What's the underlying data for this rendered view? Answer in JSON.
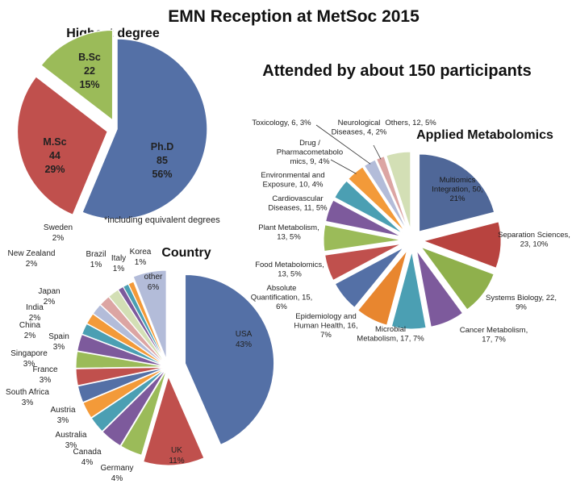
{
  "title": "EMN Reception at MetSoc 2015",
  "subtitle": "Attended by about 150 participants",
  "colors": {
    "blue": "#5470a6",
    "red": "#c0504d",
    "green": "#9bbb59",
    "purple": "#7d5a9c",
    "teal": "#4b9fb3",
    "orange": "#f39a39",
    "lavender": "#b3bcd9",
    "pink": "#dca5a3",
    "lightgreen": "#d3dfb5"
  },
  "chart_data": [
    {
      "type": "pie",
      "title": "Highest degree",
      "footnote": "*including equivalent degrees",
      "slices": [
        {
          "name": "Ph.D",
          "value": 85,
          "percent": "56%",
          "color": "#5470a6",
          "label": [
            "Ph.D",
            "85",
            "56%"
          ]
        },
        {
          "name": "M.Sc",
          "value": 44,
          "percent": "29%",
          "color": "#c0504d",
          "label": [
            "M.Sc",
            "44",
            "29%"
          ]
        },
        {
          "name": "B.Sc",
          "value": 22,
          "percent": "15%",
          "color": "#9bbb59",
          "label": [
            "B.Sc",
            "22",
            "15%"
          ]
        }
      ]
    },
    {
      "type": "pie",
      "title": "Country",
      "slices": [
        {
          "name": "USA",
          "value": 43,
          "color": "#5470a6",
          "label": [
            "USA",
            "43%"
          ]
        },
        {
          "name": "UK",
          "value": 11,
          "color": "#c0504d",
          "label": [
            "UK",
            "11%"
          ]
        },
        {
          "name": "Germany",
          "value": 4,
          "color": "#9bbb59",
          "label": [
            "Germany",
            "4%"
          ]
        },
        {
          "name": "Canada",
          "value": 4,
          "color": "#7d5a9c",
          "label": [
            "Canada",
            "4%"
          ]
        },
        {
          "name": "Australia",
          "value": 3,
          "color": "#4b9fb3",
          "label": [
            "Australia",
            "3%"
          ]
        },
        {
          "name": "Austria",
          "value": 3,
          "color": "#f39a39",
          "label": [
            "Austria",
            "3%"
          ]
        },
        {
          "name": "South Africa",
          "value": 3,
          "color": "#5470a6",
          "label": [
            "South Africa",
            "3%"
          ]
        },
        {
          "name": "France",
          "value": 3,
          "color": "#c0504d",
          "label": [
            "France",
            "3%"
          ]
        },
        {
          "name": "Singapore",
          "value": 3,
          "color": "#9bbb59",
          "label": [
            "Singapore",
            "3%"
          ]
        },
        {
          "name": "Spain",
          "value": 3,
          "color": "#7d5a9c",
          "label": [
            "Spain",
            "3%"
          ]
        },
        {
          "name": "China",
          "value": 2,
          "color": "#4b9fb3",
          "label": [
            "China",
            "2%"
          ]
        },
        {
          "name": "India",
          "value": 2,
          "color": "#f39a39",
          "label": [
            "India",
            "2%"
          ]
        },
        {
          "name": "Japan",
          "value": 2,
          "color": "#b3bcd9",
          "label": [
            "Japan",
            "2%"
          ]
        },
        {
          "name": "New Zealand",
          "value": 2,
          "color": "#dca5a3",
          "label": [
            "New Zealand",
            "2%"
          ]
        },
        {
          "name": "Sweden",
          "value": 2,
          "color": "#d3dfb5",
          "label": [
            "Sweden",
            "2%"
          ]
        },
        {
          "name": "Brazil",
          "value": 1,
          "color": "#7d5a9c",
          "label": [
            "Brazil",
            "1%"
          ]
        },
        {
          "name": "Italy",
          "value": 1,
          "color": "#4b9fb3",
          "label": [
            "Italy",
            "1%"
          ]
        },
        {
          "name": "Korea",
          "value": 1,
          "color": "#f39a39",
          "label": [
            "Korea",
            "1%"
          ]
        },
        {
          "name": "other",
          "value": 6,
          "color": "#b3bcd9",
          "label": [
            "other",
            "6%"
          ]
        }
      ]
    },
    {
      "type": "pie",
      "title": "Applied Metabolomics",
      "slices": [
        {
          "name": "Multiomics Integration",
          "value": 50,
          "percent": "21%",
          "color": "#4f6798",
          "label": [
            "Multiomics",
            "Integration, 50,",
            "21%"
          ]
        },
        {
          "name": "Separation Sciences",
          "value": 23,
          "percent": "10%",
          "color": "#b8433f",
          "label": [
            "Separation Sciences,",
            "23, 10%"
          ]
        },
        {
          "name": "Systems Biology",
          "value": 22,
          "percent": "9%",
          "color": "#8fb04c",
          "label": [
            "Systems Biology, 22,",
            "9%"
          ]
        },
        {
          "name": "Cancer Metabolism",
          "value": 17,
          "percent": "7%",
          "color": "#7d5a9c",
          "label": [
            "Cancer Metabolism,",
            "17, 7%"
          ]
        },
        {
          "name": "Microbial Metabolism",
          "value": 17,
          "percent": "7%",
          "color": "#4b9fb3",
          "label": [
            "Microbial",
            "Metabolism, 17, 7%"
          ]
        },
        {
          "name": "Epidemiology and Human Health",
          "value": 16,
          "percent": "7%",
          "color": "#e8862f",
          "label": [
            "Epidemiology and",
            "Human Health, 16,",
            "7%"
          ]
        },
        {
          "name": "Absolute Quantification",
          "value": 15,
          "percent": "6%",
          "color": "#5470a6",
          "label": [
            "Absolute",
            "Quantification, 15,",
            "6%"
          ]
        },
        {
          "name": "Food Metabolomics",
          "value": 13,
          "percent": "5%",
          "color": "#c0504d",
          "label": [
            "Food Metabolomics,",
            "13, 5%"
          ]
        },
        {
          "name": "Plant Metabolism",
          "value": 13,
          "percent": "5%",
          "color": "#9bbb59",
          "label": [
            "Plant Metabolism,",
            "13, 5%"
          ]
        },
        {
          "name": "Cardiovascular Diseases",
          "value": 11,
          "percent": "5%",
          "color": "#7d5a9c",
          "label": [
            "Cardiovascular",
            "Diseases, 11, 5%"
          ]
        },
        {
          "name": "Environmental and Exposure",
          "value": 10,
          "percent": "4%",
          "color": "#4b9fb3",
          "label": [
            "Environmental and",
            "Exposure, 10, 4%"
          ]
        },
        {
          "name": "Drug / Pharmacometabolomics",
          "value": 9,
          "percent": "4%",
          "color": "#f39a39",
          "label": [
            "Drug /",
            "Pharmacometabolo",
            "mics, 9, 4%"
          ]
        },
        {
          "name": "Toxicology",
          "value": 6,
          "percent": "3%",
          "color": "#b3bcd9",
          "label": [
            "Toxicology, 6, 3%"
          ]
        },
        {
          "name": "Neurological Diseases",
          "value": 4,
          "percent": "2%",
          "color": "#dca5a3",
          "label": [
            "Neurological",
            "Diseases, 4, 2%"
          ]
        },
        {
          "name": "Others",
          "value": 12,
          "percent": "5%",
          "color": "#d3dfb5",
          "label": [
            "Others, 12, 5%"
          ]
        }
      ]
    }
  ]
}
